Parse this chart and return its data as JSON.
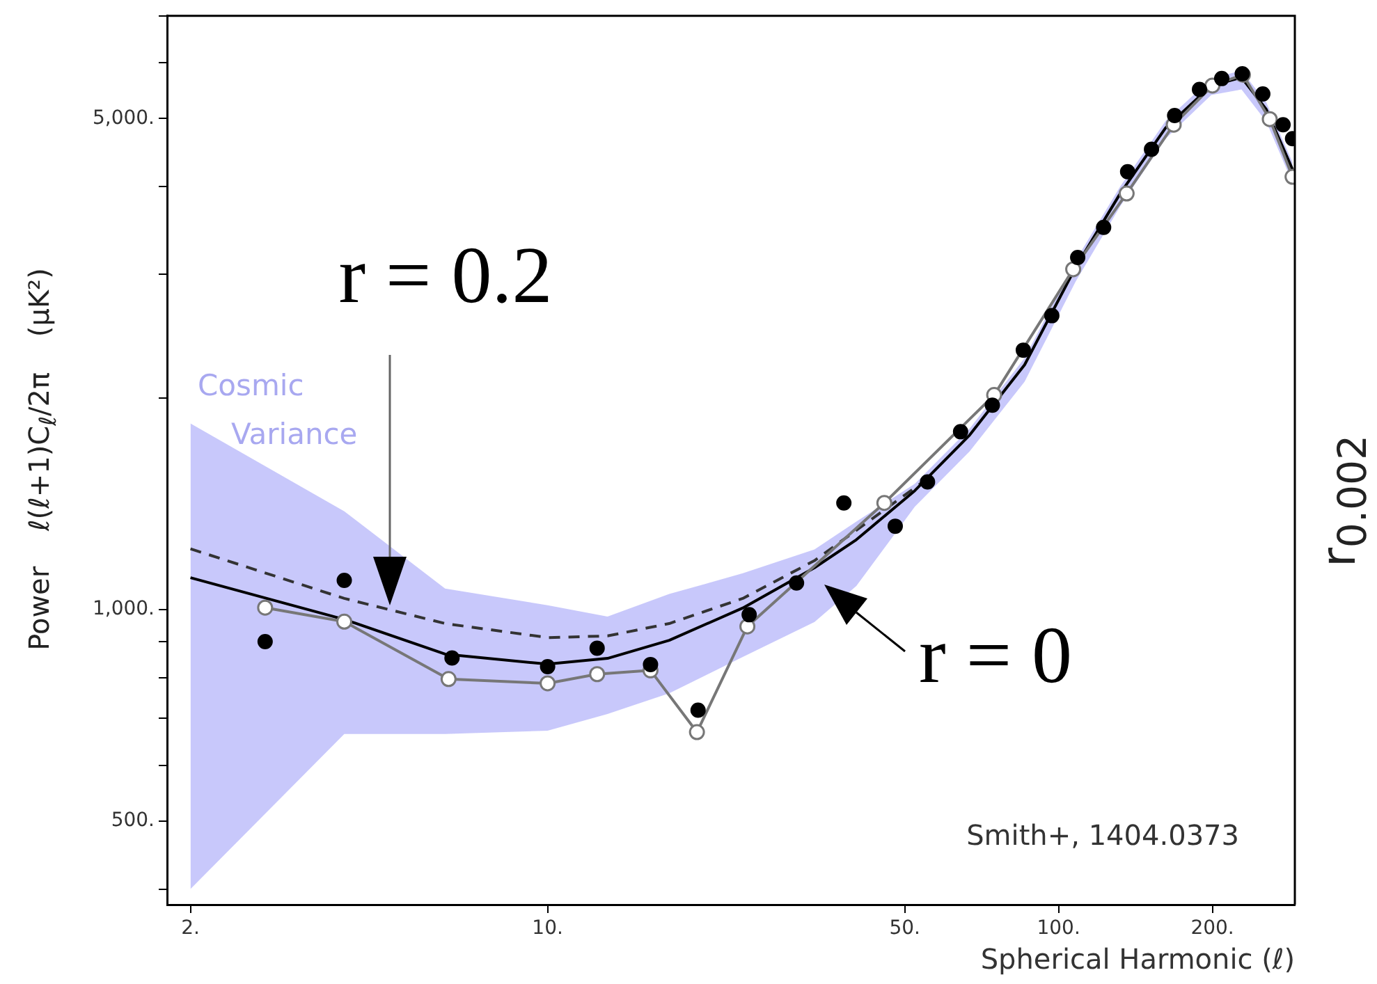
{
  "chart_data": {
    "type": "scatter",
    "xlabel": "Spherical Harmonic (ℓ)",
    "ylabel": "Power    ℓ(ℓ+1)C$_{ℓ}$/2π    (μK²)",
    "log": "xy",
    "grid": false,
    "legend": false,
    "xlim": [
      1.8,
      290
    ],
    "xticks": [
      {
        "value": 2,
        "label": "2."
      },
      {
        "value": 10,
        "label": "10."
      },
      {
        "value": 50,
        "label": "50."
      },
      {
        "value": 100,
        "label": "100."
      },
      {
        "value": 200,
        "label": "200."
      }
    ],
    "ylim": [
      380,
      7000
    ],
    "yticks": [
      {
        "value": 400,
        "label": null
      },
      {
        "value": 500,
        "label": "500."
      },
      {
        "value": 600,
        "label": null
      },
      {
        "value": 700,
        "label": null
      },
      {
        "value": 800,
        "label": null
      },
      {
        "value": 900,
        "label": null
      },
      {
        "value": 1000,
        "label": "1,000."
      },
      {
        "value": 2000,
        "label": null
      },
      {
        "value": 3000,
        "label": null
      },
      {
        "value": 4000,
        "label": null
      },
      {
        "value": 5000,
        "label": "5,000."
      },
      {
        "value": 6000,
        "label": null
      },
      {
        "value": 7000,
        "label": null
      }
    ],
    "series": [
      {
        "type": "scatter",
        "color": "#000000",
        "marker": "circle",
        "x": [
          2.8,
          4,
          6.5,
          10,
          12.5,
          15.9,
          19.7,
          24.8,
          30.7,
          38,
          47.9,
          55.4,
          64.3,
          74.2,
          85.3,
          97,
          109,
          122.5,
          136.5,
          152,
          168.7,
          188.7,
          208.6,
          228.8,
          251,
          275,
          287
        ],
        "values": [
          900,
          1100,
          853,
          829,
          881,
          835,
          719,
          983,
          1091,
          1418,
          1314,
          1519,
          1791,
          1954,
          2340,
          2620,
          3170,
          3500,
          4200,
          4520,
          5050,
          5500,
          5700,
          5790,
          5420,
          4900,
          4680
        ]
      },
      {
        "type": "line",
        "color": "#777777",
        "marker": "circle",
        "x": [
          2.8,
          4,
          6.4,
          10,
          12.5,
          15.9,
          19.6,
          24.6,
          45.6,
          74.8,
          106.8,
          135.9,
          168,
          200,
          229.5,
          259,
          287
        ],
        "values": [
          1006,
          961,
          796,
          785,
          809,
          819,
          669,
          946,
          1418,
          2020,
          3050,
          3910,
          4900,
          5570,
          5770,
          4990,
          4130
        ]
      },
      {
        "type": "line",
        "color": "#000000",
        "marker": "none",
        "x": [
          2,
          4,
          6.3,
          10,
          13.1,
          17.3,
          24.1,
          33.3,
          40.2,
          52.3,
          67,
          85.8,
          108,
          132,
          162,
          199,
          228,
          255,
          287
        ],
        "values": [
          1110,
          968,
          864,
          836,
          852,
          904,
          1005,
          1147,
          1257,
          1476,
          1772,
          2230,
          3070,
          3910,
          4850,
          5570,
          5720,
          5150,
          4230
        ],
        "upper": [
          1840,
          1380,
          1071,
          1014,
          977,
          1052,
          1126,
          1218,
          1334,
          1510,
          1810,
          2280,
          3140,
          4000,
          4960,
          5700,
          5850,
          5270,
          4330
        ],
        "lower": [
          400,
          665,
          665,
          672,
          710,
          760,
          856,
          960,
          1080,
          1400,
          1680,
          2110,
          2930,
          3750,
          4680,
          5400,
          5500,
          4950,
          4050
        ]
      },
      {
        "type": "line",
        "color": "#333333",
        "marker": "none",
        "line_style": "dashed",
        "x": [
          2,
          4,
          6.3,
          10,
          13.1,
          17.3,
          24.1,
          33.3,
          55
        ],
        "values": [
          1220,
          1037,
          955,
          912,
          917,
          955,
          1037,
          1174,
          1530
        ]
      }
    ],
    "annotations": [
      "r = 0.2",
      "r = 0",
      "Cosmic Variance",
      "Smith+, 1404.0373",
      "r$_{0.002}$"
    ]
  }
}
